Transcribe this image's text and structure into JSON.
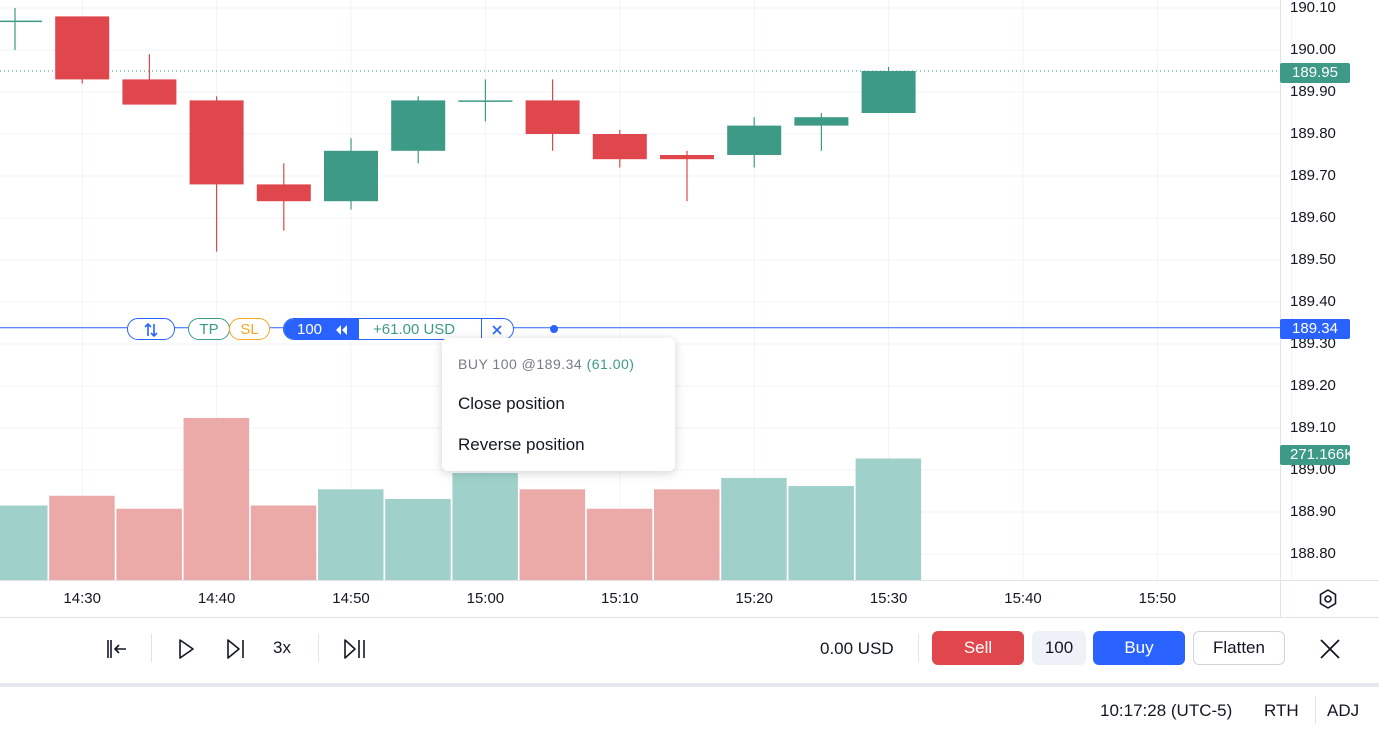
{
  "price_axis": {
    "labels": [
      "190.10",
      "190.00",
      "189.90",
      "189.80",
      "189.70",
      "189.60",
      "189.50",
      "189.40",
      "189.30",
      "189.20",
      "189.10",
      "189.00",
      "188.90",
      "188.80"
    ],
    "last_price_tag": "189.95",
    "position_price_tag": "189.34",
    "volume_tag": "271.166K"
  },
  "time_axis": {
    "labels": [
      "14:30",
      "14:40",
      "14:50",
      "15:00",
      "15:10",
      "15:20",
      "15:30",
      "15:40",
      "15:50"
    ]
  },
  "position_line": {
    "reverse_icon": "reverse-arrows-icon",
    "tp_label": "TP",
    "sl_label": "SL",
    "quantity": "100",
    "collapse_icon": "double-chevron-left-icon",
    "pnl": "+61.00 USD",
    "close_icon": "close-icon"
  },
  "context_menu": {
    "header_prefix": "BUY 100 @189.34",
    "header_pnl": "(61.00)",
    "items": [
      "Close position",
      "Reverse position"
    ]
  },
  "toolbar": {
    "pnl_value": "0.00 USD",
    "speed_label": "3x",
    "sell_label": "Sell",
    "quantity": "100",
    "buy_label": "Buy",
    "flatten_label": "Flatten"
  },
  "status_bar": {
    "time": "10:17:28 (UTC-5)",
    "session": "RTH",
    "adjustment": "ADJ"
  },
  "colors": {
    "up": "#3d9a86",
    "down": "#e0474c",
    "up_volume": "#9fd1ca",
    "down_volume": "#ebaaa8",
    "accent": "#2962ff"
  },
  "chart_data": {
    "type": "candlestick",
    "x": [
      "14:25",
      "14:30",
      "14:35",
      "14:40",
      "14:45",
      "14:50",
      "14:55",
      "15:00",
      "15:05",
      "15:10",
      "15:15",
      "15:20",
      "15:25",
      "15:30"
    ],
    "open": [
      190.07,
      190.08,
      189.93,
      189.88,
      189.68,
      189.64,
      189.76,
      189.88,
      189.88,
      189.8,
      189.75,
      189.75,
      189.82,
      189.85
    ],
    "high": [
      190.1,
      190.08,
      189.99,
      189.89,
      189.73,
      189.79,
      189.89,
      189.93,
      189.93,
      189.81,
      189.76,
      189.84,
      189.85,
      189.96
    ],
    "low": [
      190.0,
      189.92,
      189.87,
      189.52,
      189.57,
      189.62,
      189.73,
      189.83,
      189.76,
      189.72,
      189.64,
      189.72,
      189.76,
      189.85
    ],
    "close": [
      190.07,
      189.93,
      189.87,
      189.68,
      189.64,
      189.76,
      189.88,
      189.88,
      189.8,
      189.74,
      189.74,
      189.82,
      189.84,
      189.95
    ],
    "volume_relative": [
      0.46,
      0.52,
      0.44,
      1.0,
      0.46,
      0.56,
      0.5,
      0.66,
      0.56,
      0.44,
      0.56,
      0.63,
      0.58,
      0.75
    ],
    "ylim": [
      188.75,
      190.12
    ],
    "last_price": 189.95,
    "position_price": 189.34
  }
}
